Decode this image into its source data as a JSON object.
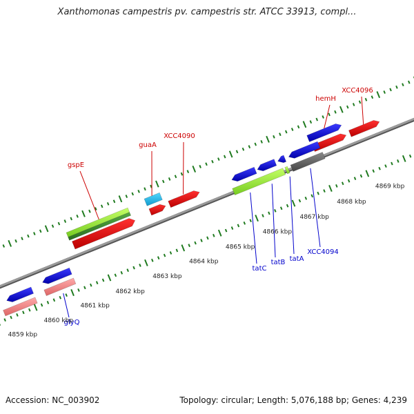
{
  "header": {
    "title": "Xanthomonas campestris pv. campestris str. ATCC 33913, compl..."
  },
  "footer": {
    "accession": "Accession: NC_003902",
    "summary": "Topology: circular; Length: 5,076,188 bp; Genes: 4,239"
  },
  "colors": {
    "backbone": "#8a8a8a",
    "tick": "#1f7a1f",
    "forward_label": "#cc0000",
    "reverse_label": "#0000cc",
    "gene_red": "#ee0000",
    "gene_blue": "#1010dd",
    "gene_cyan": "#22bbee",
    "gene_lightgreen": "#99ee33",
    "gene_darkgreen": "#3a8f2a",
    "gene_gray": "#666666",
    "gene_pink": "#ee8888"
  },
  "scale": {
    "ticks": [
      {
        "label": "4859 kbp"
      },
      {
        "label": "4860 kbp"
      },
      {
        "label": "4861 kbp"
      },
      {
        "label": "4862 kbp"
      },
      {
        "label": "4863 kbp"
      },
      {
        "label": "4864 kbp"
      },
      {
        "label": "4865 kbp"
      },
      {
        "label": "4866 kbp"
      },
      {
        "label": "4867 kbp"
      },
      {
        "label": "4868 kbp"
      },
      {
        "label": "4869 kbp"
      }
    ]
  },
  "labels": {
    "forward": [
      {
        "name": "gspE"
      },
      {
        "name": "guaA"
      },
      {
        "name": "XCC4090"
      },
      {
        "name": "hemH"
      },
      {
        "name": "XCC4096"
      }
    ],
    "reverse": [
      {
        "name": "glyQ"
      },
      {
        "name": "tatC"
      },
      {
        "name": "tatB"
      },
      {
        "name": "tatA"
      },
      {
        "name": "XCC4094"
      }
    ]
  }
}
